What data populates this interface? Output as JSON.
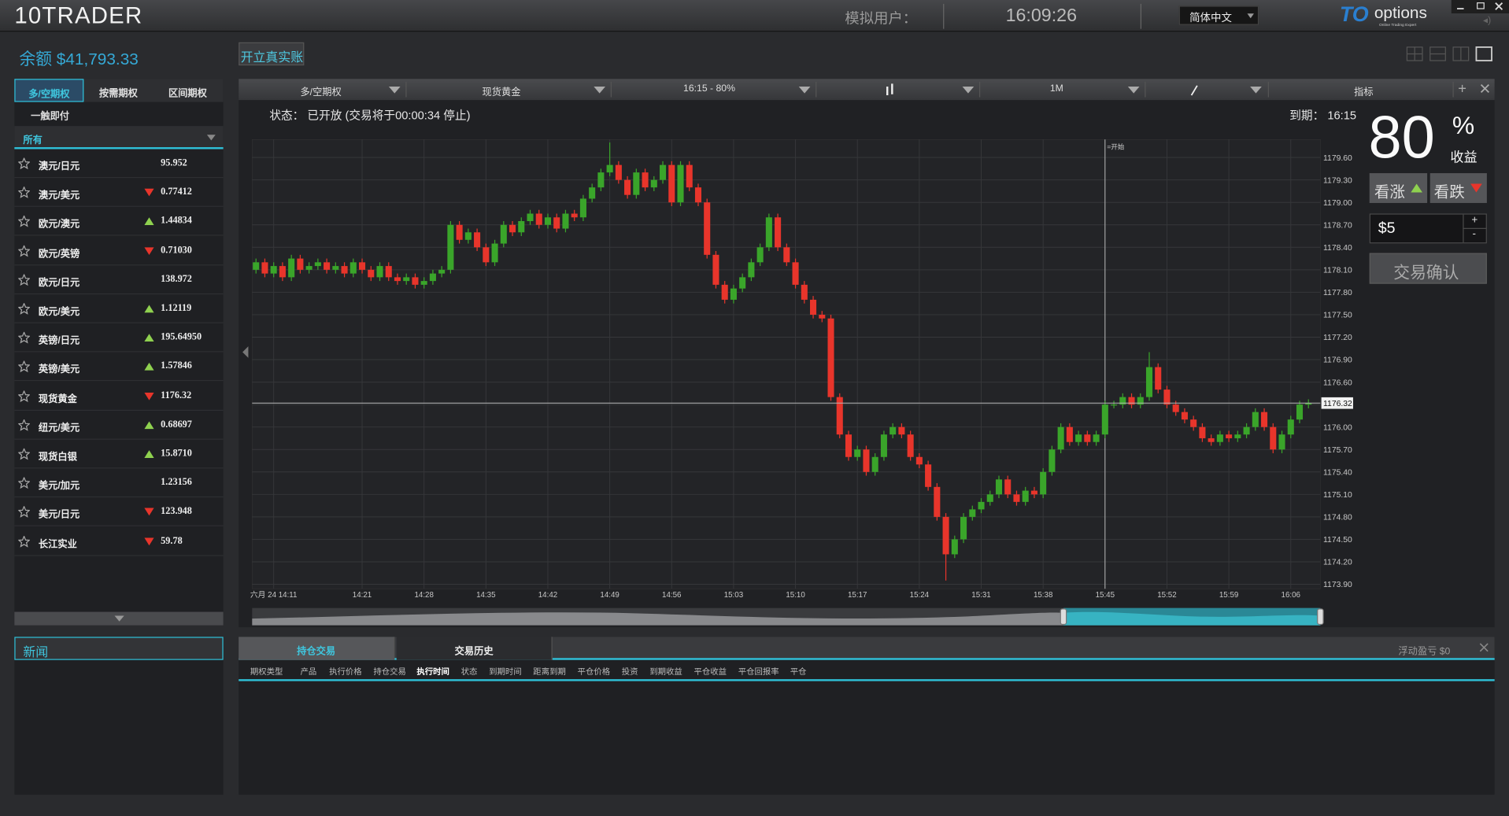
{
  "header": {
    "logo": "10TRADER",
    "user_label": "模拟用户：",
    "time": "16:09:26",
    "language": "简体中文",
    "brand": "options",
    "brand_sub": "Online Trading Expert"
  },
  "account": {
    "balance": "余额 $41,793.33",
    "open_real": "开立真实账"
  },
  "sidebar": {
    "tabs": [
      "多/空期权",
      "按需期权",
      "区间期权"
    ],
    "subtab": "一触即付",
    "filter": "所有",
    "assets": [
      {
        "name": "澳元/日元",
        "trend": null,
        "price": "95.952"
      },
      {
        "name": "澳元/美元",
        "trend": "down",
        "price": "0.77412"
      },
      {
        "name": "欧元/澳元",
        "trend": "up",
        "price": "1.44834"
      },
      {
        "name": "欧元/英镑",
        "trend": "down",
        "price": "0.71030"
      },
      {
        "name": "欧元/日元",
        "trend": null,
        "price": "138.972"
      },
      {
        "name": "欧元/美元",
        "trend": "up",
        "price": "1.12119"
      },
      {
        "name": "英镑/日元",
        "trend": "up",
        "price": "195.64950"
      },
      {
        "name": "英镑/美元",
        "trend": "up",
        "price": "1.57846"
      },
      {
        "name": "现货黄金",
        "trend": "down",
        "price": "1176.32"
      },
      {
        "name": "纽元/美元",
        "trend": "up",
        "price": "0.68697"
      },
      {
        "name": "现货白银",
        "trend": "up",
        "price": "15.8710"
      },
      {
        "name": "美元/加元",
        "trend": null,
        "price": "1.23156"
      },
      {
        "name": "美元/日元",
        "trend": "down",
        "price": "123.948"
      },
      {
        "name": "长江实业",
        "trend": "down",
        "price": "59.78"
      }
    ]
  },
  "news": {
    "title": "新闻"
  },
  "toolbar": {
    "product_type": "多/空期权",
    "asset": "现货黄金",
    "expiry": "16:15 - 80%",
    "period": "1M",
    "indicators": "指标",
    "add": "+"
  },
  "status": "状态： 已开放 (交易将于00:00:34 停止)",
  "expiry_label": "到期： 16:15",
  "trade": {
    "payout": "80",
    "percent": "%",
    "payout_label": "收益",
    "call": "看涨",
    "put": "看跌",
    "amount": "$5",
    "plus": "+",
    "minus": "-",
    "confirm": "交易确认"
  },
  "positions": {
    "tabs": [
      "持仓交易",
      "交易历史"
    ],
    "floating": "浮动盈亏  $0",
    "columns": [
      "期权类型",
      "产品",
      "执行价格",
      "持仓交易",
      "执行时间",
      "状态",
      "到期时间",
      "距离到期",
      "平仓价格",
      "投资",
      "到期收益",
      "平仓收益",
      "平仓回报率",
      "平仓"
    ]
  },
  "chart_data": {
    "type": "candlestick",
    "up_color": "#3aa52a",
    "down_color": "#e8352b",
    "grid": true,
    "categories": [
      null,
      null,
      "六月 24 14:11",
      null,
      null,
      null,
      null,
      null,
      null,
      null,
      null,
      null,
      "14:21",
      null,
      null,
      null,
      null,
      null,
      null,
      "14:28",
      null,
      null,
      null,
      null,
      null,
      null,
      "14:35",
      null,
      null,
      null,
      null,
      null,
      null,
      "14:42",
      null,
      null,
      null,
      null,
      null,
      null,
      "14:49",
      null,
      null,
      null,
      null,
      null,
      null,
      "14:56",
      null,
      null,
      null,
      null,
      null,
      null,
      "15:03",
      null,
      null,
      null,
      null,
      null,
      null,
      "15:10",
      null,
      null,
      null,
      null,
      null,
      null,
      "15:17",
      null,
      null,
      null,
      null,
      null,
      null,
      "15:24",
      null,
      null,
      null,
      null,
      null,
      null,
      "15:31",
      null,
      null,
      null,
      null,
      null,
      null,
      "15:38",
      null,
      null,
      null,
      null,
      null,
      null,
      "15:45",
      null,
      null,
      null,
      null,
      null,
      null,
      "15:52",
      null,
      null,
      null,
      null,
      null,
      null,
      "15:59",
      null,
      null,
      null,
      null,
      null,
      null,
      "16:06",
      null,
      null
    ],
    "open": [
      1178.1,
      1178.2,
      1178.05,
      1178.15,
      1178.0,
      1178.25,
      1178.1,
      1178.15,
      1178.2,
      1178.1,
      1178.15,
      1178.05,
      1178.2,
      1178.1,
      1178.0,
      1178.15,
      1178.0,
      1177.95,
      1178.0,
      1177.9,
      1177.95,
      1178.05,
      1178.1,
      1178.7,
      1178.5,
      1178.6,
      1178.4,
      1178.2,
      1178.45,
      1178.7,
      1178.6,
      1178.75,
      1178.85,
      1178.7,
      1178.8,
      1178.65,
      1178.85,
      1178.8,
      1179.05,
      1179.2,
      1179.4,
      1179.5,
      1179.3,
      1179.1,
      1179.4,
      1179.2,
      1179.3,
      1179.5,
      1179.0,
      1179.5,
      1179.2,
      1179.0,
      1178.3,
      1177.9,
      1177.7,
      1177.85,
      1178.0,
      1178.2,
      1178.4,
      1178.8,
      1178.4,
      1178.2,
      1177.9,
      1177.7,
      1177.5,
      1177.45,
      1176.4,
      1175.9,
      1175.6,
      1175.7,
      1175.4,
      1175.6,
      1175.9,
      1176.0,
      1175.9,
      1175.6,
      1175.5,
      1175.2,
      1174.8,
      1174.3,
      1174.5,
      1174.8,
      1174.9,
      1175.0,
      1175.1,
      1175.3,
      1175.1,
      1175.0,
      1175.15,
      1175.1,
      1175.4,
      1175.7,
      1176.0,
      1175.8,
      1175.9,
      1175.8,
      1175.9,
      1176.3,
      1176.3,
      1176.4,
      1176.3,
      1176.4,
      1176.8,
      1176.5,
      1176.3,
      1176.2,
      1176.1,
      1176.0,
      1175.85,
      1175.8,
      1175.9,
      1175.85,
      1175.9,
      1176.0,
      1176.2,
      1176.0,
      1175.7,
      1175.9,
      1176.1,
      1176.3
    ],
    "high": [
      1178.25,
      1178.25,
      1178.2,
      1178.2,
      1178.3,
      1178.3,
      1178.2,
      1178.25,
      1178.25,
      1178.2,
      1178.2,
      1178.25,
      1178.25,
      1178.15,
      1178.2,
      1178.2,
      1178.05,
      1178.05,
      1178.05,
      1178.0,
      1178.1,
      1178.15,
      1178.75,
      1178.75,
      1178.65,
      1178.65,
      1178.45,
      1178.5,
      1178.75,
      1178.75,
      1178.8,
      1178.9,
      1178.9,
      1178.85,
      1178.85,
      1178.9,
      1178.9,
      1179.1,
      1179.25,
      1179.45,
      1179.8,
      1179.55,
      1179.35,
      1179.45,
      1179.45,
      1179.35,
      1179.55,
      1179.55,
      1179.55,
      1179.55,
      1179.25,
      1179.05,
      1178.35,
      1177.95,
      1177.9,
      1178.05,
      1178.25,
      1178.45,
      1178.85,
      1178.85,
      1178.45,
      1178.25,
      1177.95,
      1177.75,
      1177.55,
      1177.5,
      1176.45,
      1175.95,
      1175.75,
      1175.75,
      1175.65,
      1175.95,
      1176.05,
      1176.05,
      1175.95,
      1175.65,
      1175.55,
      1175.25,
      1174.85,
      1174.55,
      1174.85,
      1174.95,
      1175.05,
      1175.15,
      1175.35,
      1175.35,
      1175.15,
      1175.2,
      1175.2,
      1175.45,
      1175.75,
      1176.05,
      1176.05,
      1175.95,
      1175.95,
      1175.95,
      1176.35,
      1176.35,
      1176.45,
      1176.45,
      1176.45,
      1177.0,
      1176.85,
      1176.55,
      1176.35,
      1176.25,
      1176.15,
      1176.05,
      1175.9,
      1175.95,
      1175.95,
      1175.95,
      1176.05,
      1176.25,
      1176.25,
      1176.05,
      1175.95,
      1176.15,
      1176.35,
      1176.37
    ],
    "low": [
      1178.05,
      1178.0,
      1178.0,
      1177.95,
      1177.95,
      1178.05,
      1178.05,
      1178.1,
      1178.05,
      1178.05,
      1178.0,
      1178.0,
      1178.05,
      1177.95,
      1177.95,
      1177.95,
      1177.9,
      1177.9,
      1177.85,
      1177.85,
      1177.9,
      1178.0,
      1178.05,
      1178.45,
      1178.45,
      1178.35,
      1178.15,
      1178.15,
      1178.4,
      1178.55,
      1178.55,
      1178.7,
      1178.65,
      1178.65,
      1178.6,
      1178.6,
      1178.75,
      1178.75,
      1179.0,
      1179.15,
      1179.35,
      1179.25,
      1179.05,
      1179.05,
      1179.15,
      1179.15,
      1179.25,
      1178.95,
      1178.95,
      1179.15,
      1178.95,
      1178.25,
      1177.85,
      1177.65,
      1177.65,
      1177.8,
      1177.95,
      1178.15,
      1178.35,
      1178.35,
      1178.15,
      1177.85,
      1177.65,
      1177.45,
      1177.4,
      1176.35,
      1175.85,
      1175.55,
      1175.55,
      1175.35,
      1175.35,
      1175.55,
      1175.85,
      1175.85,
      1175.55,
      1175.45,
      1175.15,
      1174.75,
      1173.95,
      1174.25,
      1174.45,
      1174.75,
      1174.85,
      1174.95,
      1175.05,
      1175.05,
      1174.95,
      1174.95,
      1175.05,
      1175.05,
      1175.35,
      1175.65,
      1175.75,
      1175.75,
      1175.75,
      1175.75,
      1175.85,
      1176.25,
      1176.25,
      1176.25,
      1176.25,
      1176.35,
      1176.45,
      1176.25,
      1176.15,
      1176.05,
      1175.95,
      1175.8,
      1175.75,
      1175.75,
      1175.8,
      1175.8,
      1175.85,
      1175.95,
      1175.95,
      1175.65,
      1175.65,
      1175.85,
      1176.05,
      1176.25
    ],
    "close": [
      1178.2,
      1178.05,
      1178.15,
      1178.0,
      1178.25,
      1178.1,
      1178.15,
      1178.2,
      1178.1,
      1178.15,
      1178.05,
      1178.2,
      1178.1,
      1178.0,
      1178.15,
      1178.0,
      1177.95,
      1178.0,
      1177.9,
      1177.95,
      1178.05,
      1178.1,
      1178.7,
      1178.5,
      1178.6,
      1178.4,
      1178.2,
      1178.45,
      1178.7,
      1178.6,
      1178.75,
      1178.85,
      1178.7,
      1178.8,
      1178.65,
      1178.85,
      1178.8,
      1179.05,
      1179.2,
      1179.4,
      1179.5,
      1179.3,
      1179.1,
      1179.4,
      1179.2,
      1179.3,
      1179.5,
      1179.0,
      1179.5,
      1179.2,
      1179.0,
      1178.3,
      1177.9,
      1177.7,
      1177.85,
      1178.0,
      1178.2,
      1178.4,
      1178.8,
      1178.4,
      1178.2,
      1177.9,
      1177.7,
      1177.5,
      1177.45,
      1176.4,
      1175.9,
      1175.6,
      1175.7,
      1175.4,
      1175.6,
      1175.9,
      1176.0,
      1175.9,
      1175.6,
      1175.5,
      1175.2,
      1174.8,
      1174.3,
      1174.5,
      1174.8,
      1174.9,
      1175.0,
      1175.1,
      1175.3,
      1175.1,
      1175.0,
      1175.15,
      1175.1,
      1175.4,
      1175.7,
      1176.0,
      1175.8,
      1175.9,
      1175.8,
      1175.9,
      1176.3,
      1176.3,
      1176.4,
      1176.3,
      1176.4,
      1176.8,
      1176.5,
      1176.3,
      1176.2,
      1176.1,
      1176.0,
      1175.85,
      1175.8,
      1175.9,
      1175.85,
      1175.9,
      1176.0,
      1176.2,
      1176.0,
      1175.7,
      1175.9,
      1176.1,
      1176.3,
      1176.32
    ],
    "current_price": 1176.32,
    "annotation": {
      "text": "=开始",
      "at": "15:45"
    },
    "ylim": [
      1173.84,
      1179.84
    ],
    "yticks": [
      {
        "value": 1173.9,
        "label": "1173.90"
      },
      {
        "value": 1174.2,
        "label": "1174.20"
      },
      {
        "value": 1174.5,
        "label": "1174.50"
      },
      {
        "value": 1174.8,
        "label": "1174.80"
      },
      {
        "value": 1175.1,
        "label": "1175.10"
      },
      {
        "value": 1175.4,
        "label": "1175.40"
      },
      {
        "value": 1175.7,
        "label": "1175.70"
      },
      {
        "value": 1176.0,
        "label": "1176.00"
      },
      {
        "value": 1176.3,
        "label": "1176.30"
      },
      {
        "value": 1176.6,
        "label": "1176.60"
      },
      {
        "value": 1176.9,
        "label": "1176.90"
      },
      {
        "value": 1177.2,
        "label": "1177.20"
      },
      {
        "value": 1177.5,
        "label": "1177.50"
      },
      {
        "value": 1177.8,
        "label": "1177.80"
      },
      {
        "value": 1178.1,
        "label": "1178.10"
      },
      {
        "value": 1178.4,
        "label": "1178.40"
      },
      {
        "value": 1178.7,
        "label": "1178.70"
      },
      {
        "value": 1179.0,
        "label": "1179.00"
      },
      {
        "value": 1179.3,
        "label": "1179.30"
      },
      {
        "value": 1179.6,
        "label": "1179.60"
      }
    ]
  }
}
